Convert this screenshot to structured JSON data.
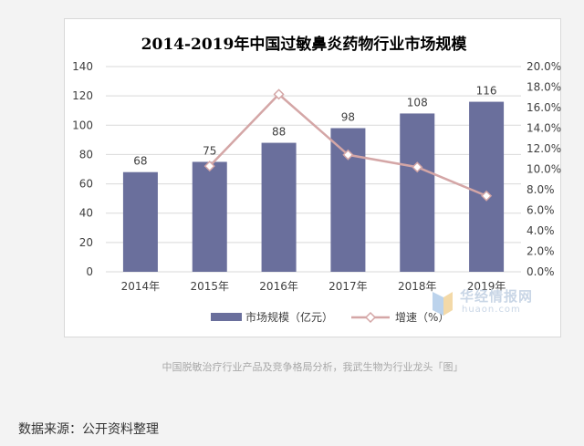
{
  "colors": {
    "bar": "#6a6f9c",
    "line": "#d4a6a6",
    "marker_fill": "#ffffff",
    "grid": "#d9d9d9",
    "axis_text": "#404040",
    "title": "#222222",
    "watermark": "#c9d6e6"
  },
  "chart_data": {
    "type": "bar",
    "title": "2014-2019年中国过敏鼻炎药物行业市场规模",
    "categories": [
      "2014年",
      "2015年",
      "2016年",
      "2017年",
      "2018年",
      "2019年"
    ],
    "series": [
      {
        "name": "市场规模（亿元）",
        "type": "bar",
        "axis": "left",
        "values": [
          68,
          75,
          88,
          98,
          108,
          116
        ],
        "labels": [
          "68",
          "75",
          "88",
          "98",
          "108",
          "116"
        ]
      },
      {
        "name": "增速（%）",
        "type": "line",
        "axis": "right",
        "values": [
          null,
          10.3,
          17.3,
          11.4,
          10.2,
          7.4
        ]
      }
    ],
    "y_left": {
      "lim": [
        0,
        140
      ],
      "ticks": [
        "0",
        "20",
        "40",
        "60",
        "80",
        "100",
        "120",
        "140"
      ]
    },
    "y_right": {
      "lim": [
        0,
        20
      ],
      "ticks": [
        "0.0%",
        "2.0%",
        "4.0%",
        "6.0%",
        "8.0%",
        "10.0%",
        "12.0%",
        "14.0%",
        "16.0%",
        "18.0%",
        "20.0%"
      ]
    },
    "grid": true,
    "legend_position": "bottom"
  },
  "watermark": {
    "name": "华经情报网",
    "url": "huaon.com"
  },
  "caption": "中国脱敏治疗行业产品及竞争格局分析，我武生物为行业龙头「图」",
  "source": "数据来源：公开资料整理"
}
